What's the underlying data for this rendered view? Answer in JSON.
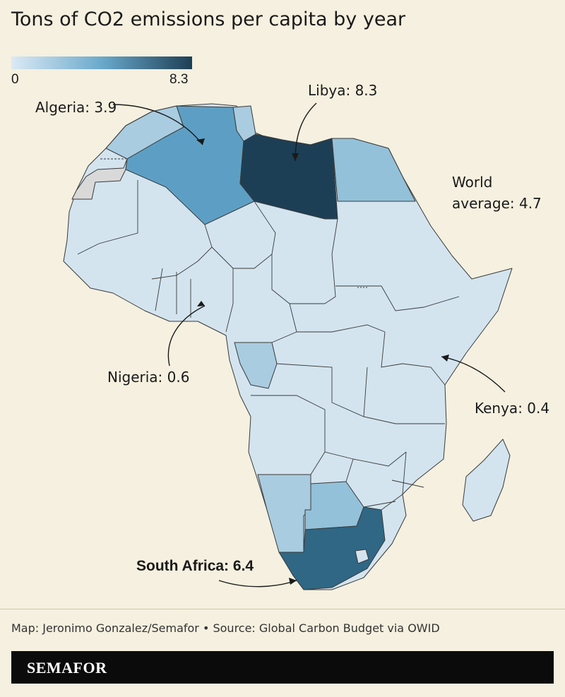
{
  "title": "Tons of CO2 emissions per capita by year",
  "legend": {
    "min_label": "0",
    "max_label": "8.3",
    "colors": [
      "#dbe9f4",
      "#6aa9cc",
      "#1d3f55"
    ]
  },
  "annotations": {
    "algeria": "Algeria: 3.9",
    "libya": "Libya: 8.3",
    "world_line1": "World",
    "world_line2": "average: 4.7",
    "nigeria": "Nigeria: 0.6",
    "kenya": "Kenya: 0.4",
    "south_africa": "South Africa: 6.4"
  },
  "source": "Map: Jeronimo Gonzalez/Semafor • Source: Global Carbon Budget via OWID",
  "brand": "SEMAFOR",
  "colors": {
    "background": "#f5f0df",
    "light": "#d3e4ef",
    "medium_light": "#a9cce0",
    "medium": "#93c1d9",
    "algeria": "#5d9fc4",
    "south_africa": "#2f6785",
    "libya": "#1d3f55",
    "no_data": "#d9d9d9"
  }
}
